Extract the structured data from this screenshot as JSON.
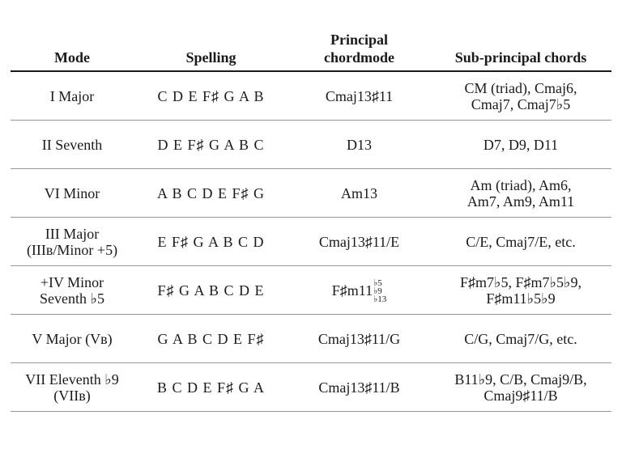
{
  "table": {
    "headers": {
      "mode": "Mode",
      "spelling": "Spelling",
      "principal_line1": "Principal",
      "principal_line2": "chordmode",
      "sub": "Sub-principal chords"
    },
    "rows": [
      {
        "mode": [
          "I Major"
        ],
        "spelling": "C D E F♯ G A B",
        "principal": "Cmaj13♯11",
        "sub": [
          "CM (triad), Cmaj6,",
          "Cmaj7, Cmaj7♭5"
        ]
      },
      {
        "mode": [
          "II Seventh"
        ],
        "spelling": "D E F♯ G A B C",
        "principal": "D13",
        "sub": [
          "D7, D9, D11"
        ]
      },
      {
        "mode": [
          "VI Minor"
        ],
        "spelling": "A B C D E F♯ G",
        "principal": "Am13",
        "sub": [
          "Am (triad), Am6,",
          "Am7, Am9, Am11"
        ]
      },
      {
        "mode": [
          "III Major",
          "(IIIʙ/Minor +5)"
        ],
        "spelling": "E F♯ G A B C D",
        "principal": "Cmaj13♯11/E",
        "sub": [
          "C/E, Cmaj7/E, etc."
        ]
      },
      {
        "mode": [
          "+IV Minor",
          "Seventh ♭5"
        ],
        "spelling": "F♯ G A B C D E",
        "principal_base": "F♯m11",
        "principal_alts": [
          "♭5",
          "♭9",
          "♭13"
        ],
        "sub": [
          "F♯m7♭5, F♯m7♭5♭9,",
          "F♯m11♭5♭9"
        ]
      },
      {
        "mode": [
          "V Major (Vʙ)"
        ],
        "spelling": "G A B C D E F♯",
        "principal": "Cmaj13♯11/G",
        "sub": [
          "C/G, Cmaj7/G, etc."
        ]
      },
      {
        "mode": [
          "VII Eleventh ♭9",
          "(VIIʙ)"
        ],
        "spelling": "B C D E F♯ G A",
        "principal": "Cmaj13♯11/B",
        "sub": [
          "B11♭9, C/B, Cmaj9/B,",
          "Cmaj9♯11/B"
        ]
      }
    ]
  }
}
